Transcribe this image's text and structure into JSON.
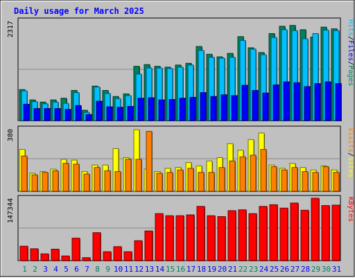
{
  "title": "Daily usage for March 2025",
  "colors": {
    "background": "#c0c0c0",
    "plot_bg": "#c0c0c0",
    "hits": "#00805c",
    "files": "#00c0ff",
    "pages": "#0000ff",
    "visits": "#ffff00",
    "sites": "#ff8000",
    "kbytes": "#ff0000",
    "title": "#0000ff",
    "weekend_day": "#00805c",
    "weekday": "#0000ff"
  },
  "chart_data": [
    {
      "type": "bar",
      "name": "hits-files-pages",
      "categories": [
        "1",
        "2",
        "3",
        "4",
        "5",
        "6",
        "7",
        "8",
        "9",
        "10",
        "11",
        "12",
        "13",
        "14",
        "15",
        "16",
        "17",
        "18",
        "19",
        "20",
        "21",
        "22",
        "23",
        "24",
        "25",
        "26",
        "27",
        "28",
        "29",
        "30",
        "31"
      ],
      "ymax": 2317,
      "ymax_label": "2317",
      "legend": [
        "Pages",
        "/",
        "Files",
        "/",
        "Hits"
      ],
      "series": [
        {
          "name": "Hits",
          "values": [
            720,
            480,
            430,
            480,
            520,
            700,
            240,
            800,
            700,
            560,
            620,
            1260,
            1300,
            1260,
            1240,
            1290,
            1330,
            1720,
            1540,
            1480,
            1560,
            1950,
            1690,
            1580,
            2020,
            2190,
            2210,
            2110,
            1940,
            2170,
            2130
          ]
        },
        {
          "name": "Files",
          "values": [
            690,
            440,
            390,
            430,
            400,
            650,
            190,
            780,
            630,
            510,
            580,
            1080,
            1220,
            1220,
            1210,
            1240,
            1290,
            1630,
            1470,
            1450,
            1470,
            1860,
            1660,
            1530,
            1930,
            2110,
            2090,
            1900,
            2020,
            2100,
            2090
          ]
        },
        {
          "name": "Pages",
          "values": [
            380,
            280,
            280,
            280,
            260,
            350,
            140,
            450,
            320,
            310,
            330,
            520,
            530,
            480,
            490,
            520,
            540,
            650,
            560,
            600,
            580,
            820,
            700,
            640,
            830,
            900,
            880,
            790,
            860,
            900,
            860
          ]
        }
      ]
    },
    {
      "type": "bar",
      "name": "visits-sites",
      "categories": [
        "1",
        "2",
        "3",
        "4",
        "5",
        "6",
        "7",
        "8",
        "9",
        "10",
        "11",
        "12",
        "13",
        "14",
        "15",
        "16",
        "17",
        "18",
        "19",
        "20",
        "21",
        "22",
        "23",
        "24",
        "25",
        "26",
        "27",
        "28",
        "29",
        "30",
        "31"
      ],
      "ymax": 380,
      "ymax_label": "380",
      "legend": [
        "Sites",
        "/",
        "Visits"
      ],
      "series": [
        {
          "name": "Visits",
          "values": [
            255,
            110,
            120,
            135,
            195,
            190,
            120,
            160,
            160,
            260,
            205,
            375,
            135,
            120,
            140,
            145,
            175,
            155,
            185,
            205,
            290,
            250,
            315,
            355,
            160,
            140,
            170,
            145,
            130,
            155,
            130
          ]
        },
        {
          "name": "Sites",
          "values": [
            215,
            100,
            115,
            125,
            170,
            165,
            105,
            145,
            125,
            120,
            195,
            195,
            365,
            110,
            115,
            130,
            140,
            115,
            115,
            145,
            185,
            210,
            220,
            255,
            150,
            130,
            145,
            120,
            115,
            150,
            115
          ]
        }
      ]
    },
    {
      "type": "bar",
      "name": "kbytes",
      "categories": [
        "1",
        "2",
        "3",
        "4",
        "5",
        "6",
        "7",
        "8",
        "9",
        "10",
        "11",
        "12",
        "13",
        "14",
        "15",
        "16",
        "17",
        "18",
        "19",
        "20",
        "21",
        "22",
        "23",
        "24",
        "25",
        "26",
        "27",
        "28",
        "29",
        "30",
        "31"
      ],
      "ymax": 147344,
      "ymax_label": "147344",
      "legend": [
        "KBytes"
      ],
      "series": [
        {
          "name": "KBytes",
          "values": [
            34000,
            28000,
            16000,
            27000,
            11000,
            53000,
            7000,
            66000,
            21000,
            33000,
            21000,
            47000,
            70000,
            111000,
            106000,
            106000,
            108000,
            128000,
            106000,
            104000,
            118000,
            120000,
            111000,
            128000,
            132000,
            124000,
            136000,
            119000,
            147344,
            130000,
            131000
          ]
        }
      ]
    }
  ]
}
